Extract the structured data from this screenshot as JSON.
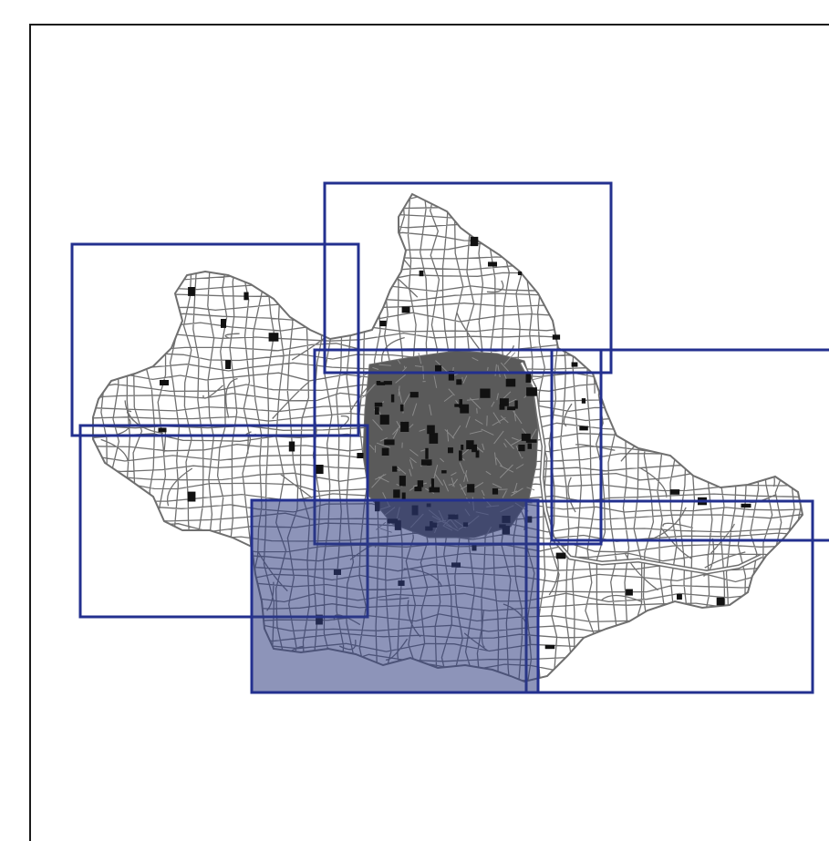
{
  "map": {
    "colors": {
      "background": "#ffffff",
      "frame": "#1a1a1a",
      "streets": "#6f6f6f",
      "blocks": "#111111",
      "tile_outline": "#23308f",
      "tile_highlight": "#2f3d80"
    },
    "tiles": [
      {
        "id": "north"
      },
      {
        "id": "north-west"
      },
      {
        "id": "west"
      },
      {
        "id": "center"
      },
      {
        "id": "east"
      },
      {
        "id": "south-west",
        "selected": true
      },
      {
        "id": "south-east"
      }
    ]
  }
}
